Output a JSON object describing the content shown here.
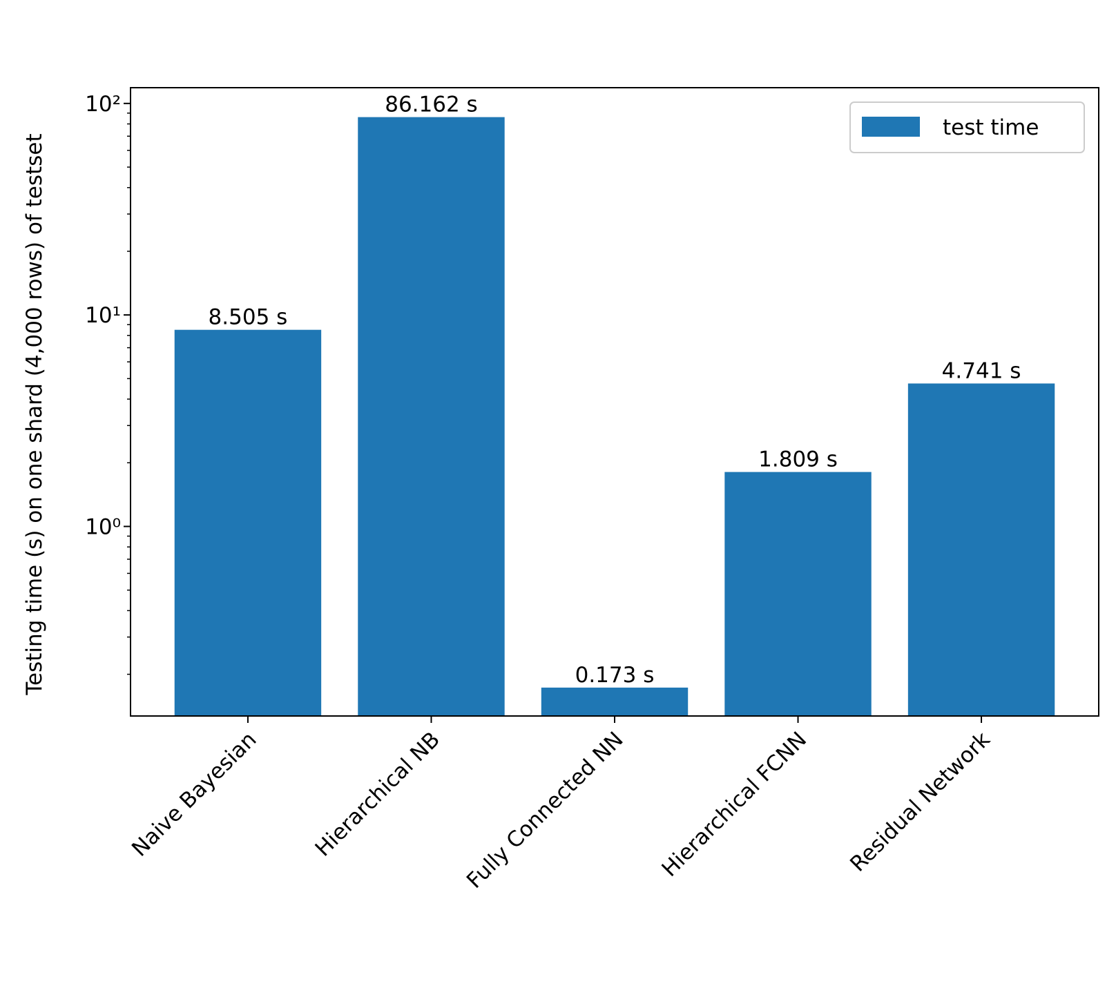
{
  "chart_data": {
    "type": "bar",
    "y_label": "Testing time (s) on one shard (4,000 rows) of testset",
    "categories": [
      "Naive Bayesian",
      "Hierarchical NB",
      "Fully Connected NN",
      "Hierarchical FCNN",
      "Residual Network"
    ],
    "series": [
      {
        "name": "test time",
        "color": "#1f77b4",
        "values": [
          8.505,
          86.162,
          0.173,
          1.809,
          4.741
        ],
        "value_labels": [
          "8.505 s",
          "86.162 s",
          "0.173 s",
          "1.809 s",
          "4.741 s"
        ]
      }
    ],
    "ylim": [
      0.127,
      118.7
    ],
    "log_y": true,
    "yticks": [
      {
        "value": 1,
        "label": "10⁰"
      },
      {
        "value": 10,
        "label": "10¹"
      },
      {
        "value": 100,
        "label": "10²"
      }
    ],
    "yticks_minor": [
      0.2,
      0.3,
      0.4,
      0.5,
      0.6,
      0.7,
      0.8,
      0.9,
      2,
      3,
      4,
      5,
      6,
      7,
      8,
      9,
      20,
      30,
      40,
      50,
      60,
      70,
      80,
      90
    ],
    "legend": "upper right",
    "grid": false
  }
}
